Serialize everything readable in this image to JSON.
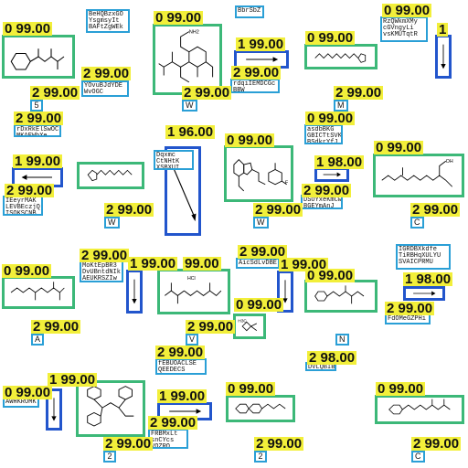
{
  "colors": {
    "molecule_box": "#3cb878",
    "arrow_box": "#2255cc",
    "text_box": "#2a9fd6",
    "score_bg": "#f2ef3a"
  },
  "scores": {
    "s1": "0 99.00",
    "s2": "0 99.00",
    "s3": "1 99.00",
    "s4": "0 99.00",
    "s5": "0 99.00",
    "s6": "1",
    "s7": "2 99.00",
    "s8": "2 99.00",
    "s9": "2 99.00",
    "s10": "2 99.00",
    "s11": "2 99.00",
    "s12": "1 96.00",
    "s13": "0 99.00",
    "s14": "2 99.00",
    "s15": "0 99.00",
    "s16": "0 99.00",
    "s17": "1 99.00",
    "s18": "1 98.00",
    "s19": "2 99.00",
    "s20": "2 99.00",
    "s21": "2 99.00",
    "s22": "2 99.00",
    "s23": "2 99.00",
    "s24": "1 99.00",
    "s25": "99.00",
    "s26": "2 99.00",
    "s27": "1 99.00",
    "s28": "0 99.00",
    "s29": "0 99.00",
    "s30": "1 98.00",
    "s31": "0 99.00",
    "s32": "2 99.00",
    "s33": "2 99.00",
    "s34": "2 99.00",
    "s35": "2 99.00",
    "s36": "2 98.00",
    "s37": "1 99.00",
    "s38": "0 99.00",
    "s39": "1 99.00",
    "s40": "0 99.00",
    "s41": "0 99.00",
    "s42": "2 99.00",
    "s43": "2 99.00",
    "s44": "2 99.00",
    "s45": "2 99.00",
    "s46": "2 99.00"
  },
  "texts": {
    "t1": "BbrSbZ j",
    "t2": "BeHQBzxGO\nYsgmsyIt\nBAFtZgWEk",
    "t3": "RzQWkmXMy\ncGVngyLi\nvsKMUTqtR",
    "t4": "YOvuBJdYDE\nWvOGC",
    "t5": "rdqiIEMDCGc\nBBW",
    "t6": "rDxRkElSwOC\nMKAEWbXe",
    "t7": "asdbBKG\nGBICTtSVK\nBSdkrYfJ",
    "t8": "DSOYxeKmCw\nBGEYmAnJ",
    "t9": "IEeyrMAK\nLEVBEczjQ\nISQKSCNB",
    "t10": "MoKtEpBR3\nDvUBntdNIk\nAEUKRSZIw",
    "t11": "AicSdLvDBE",
    "t12": "IGRDBXkdfe\nTiRBHqXULYU\nSVAICPRMU",
    "t13": "FdOMeGZPHi",
    "t14": "fEBUOACLSE\nQEEDECS",
    "t15": "DVLQBIBZI",
    "t16": "AWHKROMK",
    "t17": "FRBMxLt\nsnCYcs\nVQZRQ",
    "t18": "Dqxmc\nCtNHtK\nXSBXUI"
  },
  "labels": {
    "l1": "5",
    "l2": "W",
    "l3": "M",
    "l4": "W",
    "l5": "W",
    "l6": "C",
    "l7": "A",
    "l8": "V",
    "l9": "N",
    "l10": "2",
    "l11": "2",
    "l12": "C"
  },
  "mol_text": {
    "nh2": "NH2",
    "oh": "OH",
    "hcl": "HCl",
    "h3c": "H3C",
    "f": "F",
    "o": "O"
  }
}
